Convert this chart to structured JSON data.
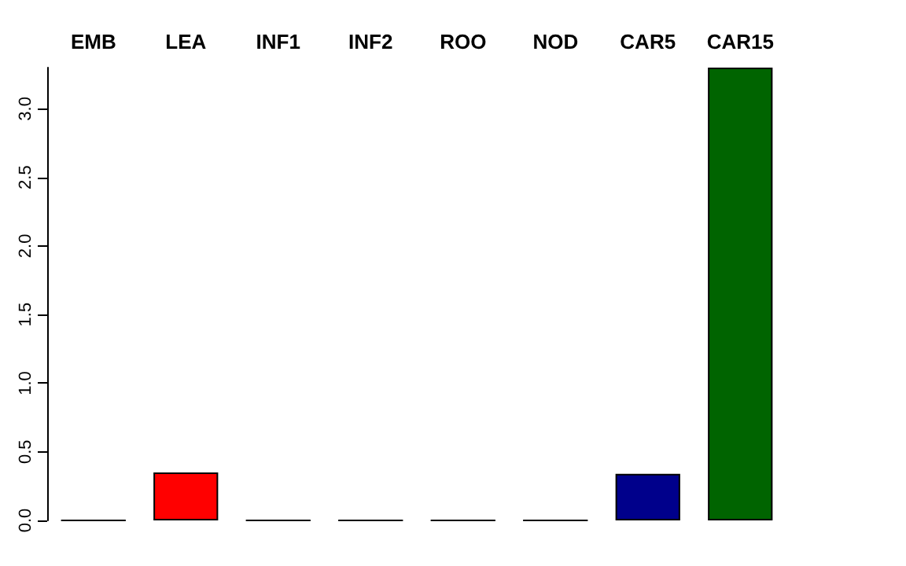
{
  "chart_data": {
    "type": "bar",
    "categories": [
      "EMB",
      "LEA",
      "INF1",
      "INF2",
      "ROO",
      "NOD",
      "CAR5",
      "CAR15"
    ],
    "values": [
      0,
      0.35,
      0,
      0,
      0,
      0,
      0.34,
      3.3
    ],
    "colors": [
      "#000000",
      "#ff0000",
      "#000000",
      "#000000",
      "#000000",
      "#000000",
      "#00008b",
      "#006400"
    ],
    "ylim": [
      0,
      3.3
    ],
    "yticks": [
      {
        "value": 0,
        "label": "0.0"
      },
      {
        "value": 0.5,
        "label": "0.5"
      },
      {
        "value": 1,
        "label": "1.0"
      },
      {
        "value": 1.5,
        "label": "1.5"
      },
      {
        "value": 2,
        "label": "2.0"
      },
      {
        "value": 2.5,
        "label": "2.5"
      },
      {
        "value": 3,
        "label": "3.0"
      }
    ],
    "grid": false
  }
}
